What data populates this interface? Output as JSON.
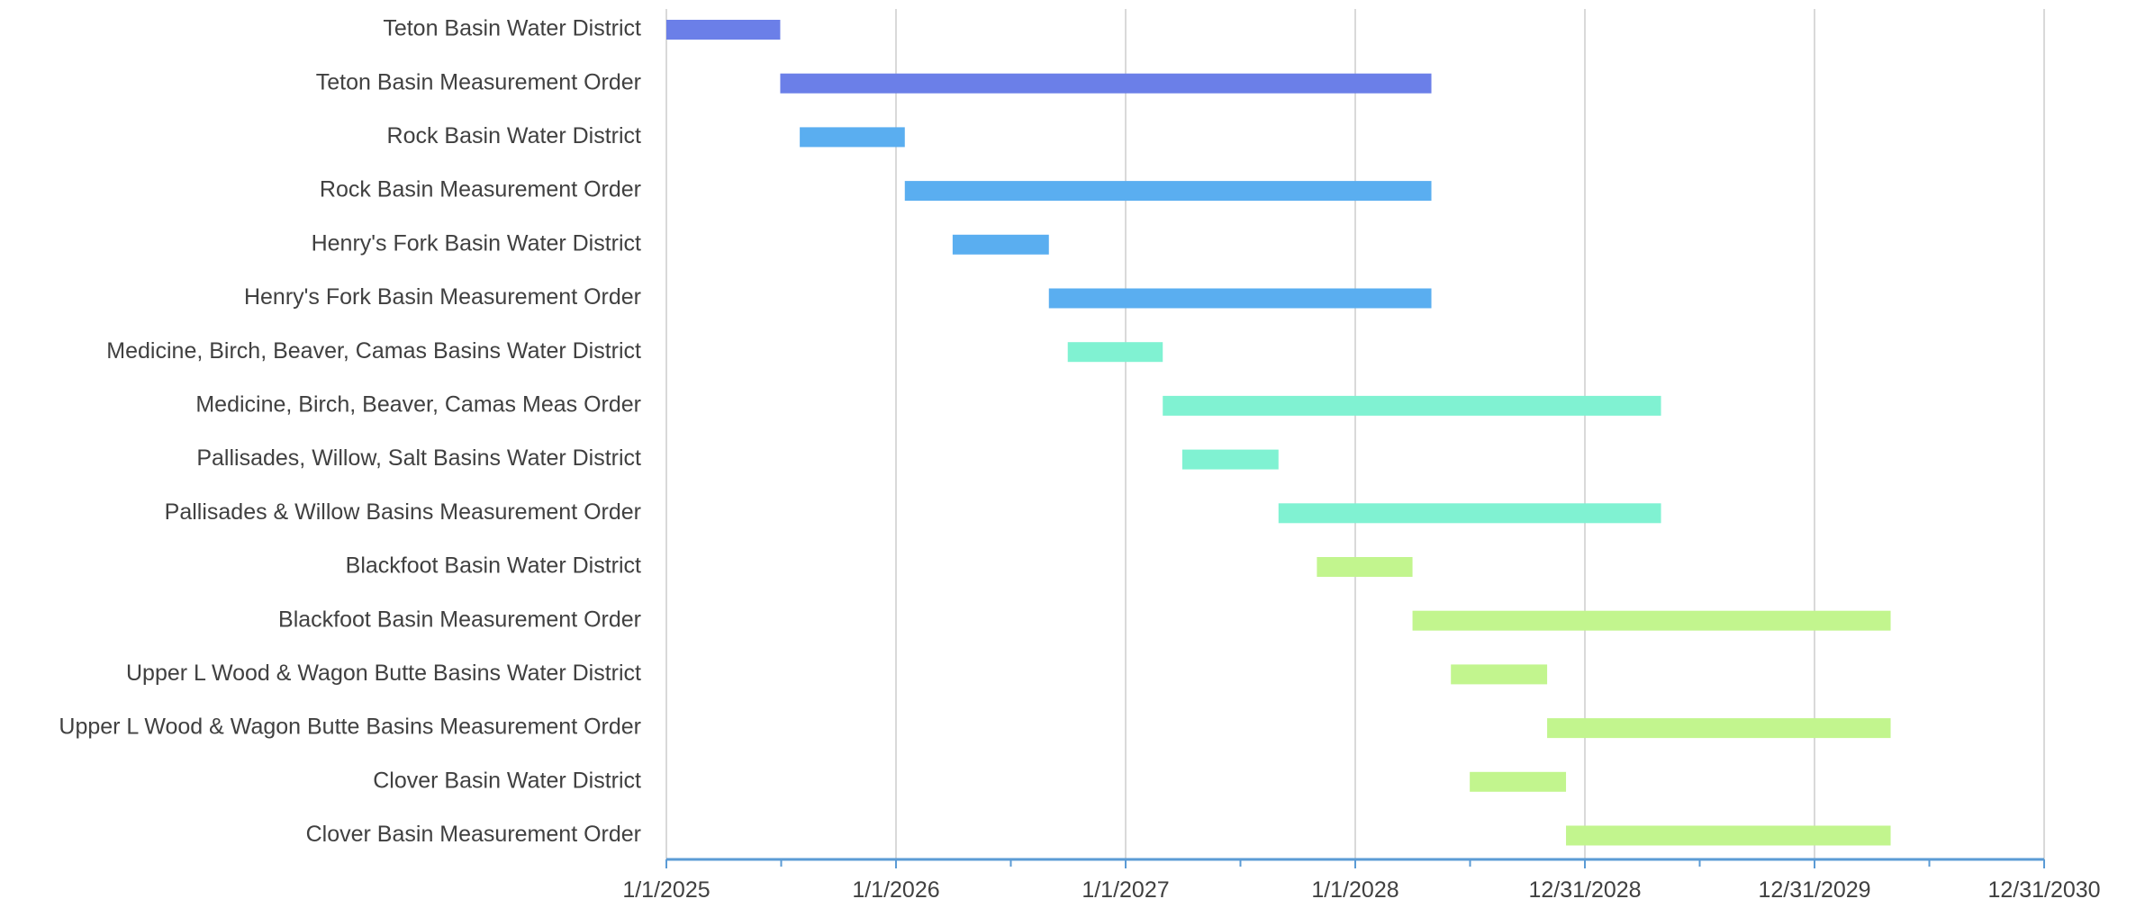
{
  "chart_data": {
    "type": "bar",
    "orientation": "horizontal-gantt",
    "title": "",
    "xlabel": "",
    "ylabel": "",
    "xlim": [
      "2025-01-01",
      "2030-12-31"
    ],
    "x_ticks": [
      "1/1/2025",
      "1/1/2026",
      "1/1/2027",
      "1/1/2028",
      "12/31/2028",
      "12/31/2029",
      "12/31/2030"
    ],
    "grid": true,
    "legend": "none",
    "tasks": [
      {
        "label": "Teton Basin Water District",
        "start": "2025-01-01",
        "end": "2025-07-01",
        "color": "#6b7fe8"
      },
      {
        "label": "Teton Basin Measurement Order",
        "start": "2025-07-01",
        "end": "2028-05-01",
        "color": "#6b7fe8"
      },
      {
        "label": "Rock Basin Water District",
        "start": "2025-08-01",
        "end": "2026-01-15",
        "color": "#5aaef0"
      },
      {
        "label": "Rock Basin Measurement Order",
        "start": "2026-01-15",
        "end": "2028-05-01",
        "color": "#5aaef0"
      },
      {
        "label": "Henry's Fork Basin Water District",
        "start": "2026-04-01",
        "end": "2026-09-01",
        "color": "#5aaef0"
      },
      {
        "label": "Henry's Fork Basin Measurement Order",
        "start": "2026-09-01",
        "end": "2028-05-01",
        "color": "#5aaef0"
      },
      {
        "label": "Medicine, Birch, Beaver, Camas Basins Water District",
        "start": "2026-10-01",
        "end": "2027-03-01",
        "color": "#80f2d2"
      },
      {
        "label": "Medicine, Birch, Beaver, Camas Meas Order",
        "start": "2027-03-01",
        "end": "2029-05-01",
        "color": "#80f2d2"
      },
      {
        "label": "Pallisades, Willow, Salt  Basins Water District",
        "start": "2027-04-01",
        "end": "2027-09-01",
        "color": "#80f2d2"
      },
      {
        "label": "Pallisades & Willow Basins Measurement Order",
        "start": "2027-09-01",
        "end": "2029-05-01",
        "color": "#80f2d2"
      },
      {
        "label": "Blackfoot Basin Water District",
        "start": "2027-11-01",
        "end": "2028-04-01",
        "color": "#c2f58e"
      },
      {
        "label": "Blackfoot Basin Measurement Order",
        "start": "2028-04-01",
        "end": "2030-05-01",
        "color": "#c2f58e"
      },
      {
        "label": "Upper L Wood & Wagon Butte Basins Water District",
        "start": "2028-06-01",
        "end": "2028-11-01",
        "color": "#c2f58e"
      },
      {
        "label": "Upper L Wood & Wagon Butte Basins Measurement Order",
        "start": "2028-11-01",
        "end": "2030-05-01",
        "color": "#c2f58e"
      },
      {
        "label": "Clover Basin Water District",
        "start": "2028-07-01",
        "end": "2028-12-01",
        "color": "#c2f58e"
      },
      {
        "label": "Clover Basin Measurement Order",
        "start": "2028-12-01",
        "end": "2030-05-01",
        "color": "#c2f58e"
      }
    ]
  }
}
